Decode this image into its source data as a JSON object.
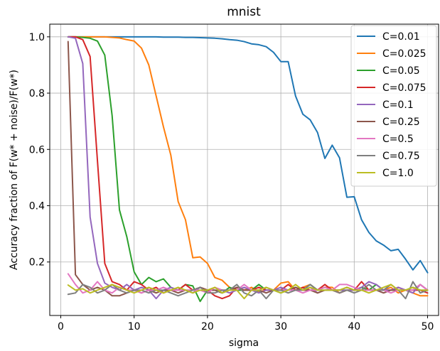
{
  "chart_data": {
    "type": "line",
    "title": "mnist",
    "xlabel": "sigma",
    "ylabel": "Accuracy fraction of F(w* + noise)/F(w*)",
    "xlim": [
      -1.5,
      51.5
    ],
    "ylim": [
      0.01,
      1.045
    ],
    "xticks": [
      0,
      10,
      20,
      30,
      40,
      50
    ],
    "yticks": [
      0.2,
      0.4,
      0.6,
      0.8,
      1.0
    ],
    "xtick_labels": [
      "0",
      "10",
      "20",
      "30",
      "40",
      "50"
    ],
    "ytick_labels": [
      "0.2",
      "0.4",
      "0.6",
      "0.8",
      "1.0"
    ],
    "grid": true,
    "legend_position": "top-right",
    "x": [
      1,
      2,
      3,
      4,
      5,
      6,
      7,
      8,
      9,
      10,
      11,
      12,
      13,
      14,
      15,
      16,
      17,
      18,
      19,
      20,
      21,
      22,
      23,
      24,
      25,
      26,
      27,
      28,
      29,
      30,
      31,
      32,
      33,
      34,
      35,
      36,
      37,
      38,
      39,
      40,
      41,
      42,
      43,
      44,
      45,
      46,
      47,
      48,
      49,
      50
    ],
    "series": [
      {
        "name": "C=0.01",
        "color": "#1f77b4",
        "values": [
          1.0,
          1.0,
          1.0,
          1.0,
          1.0,
          1.0,
          1.0,
          1.0,
          1.0,
          1.0,
          1.0,
          1.0,
          1.0,
          0.999,
          0.999,
          0.999,
          0.998,
          0.998,
          0.997,
          0.996,
          0.995,
          0.993,
          0.99,
          0.988,
          0.983,
          0.975,
          0.972,
          0.965,
          0.945,
          0.912,
          0.912,
          0.79,
          0.725,
          0.705,
          0.66,
          0.568,
          0.615,
          0.57,
          0.43,
          0.432,
          0.35,
          0.305,
          0.275,
          0.26,
          0.24,
          0.245,
          0.21,
          0.172,
          0.205,
          0.162
        ]
      },
      {
        "name": "C=0.025",
        "color": "#ff7f0e",
        "values": [
          1.0,
          1.0,
          1.0,
          1.0,
          1.0,
          1.0,
          0.998,
          0.996,
          0.99,
          0.985,
          0.96,
          0.9,
          0.79,
          0.68,
          0.58,
          0.415,
          0.35,
          0.215,
          0.218,
          0.195,
          0.145,
          0.135,
          0.11,
          0.1,
          0.1,
          0.11,
          0.095,
          0.1,
          0.1,
          0.125,
          0.13,
          0.1,
          0.11,
          0.12,
          0.1,
          0.11,
          0.11,
          0.09,
          0.1,
          0.1,
          0.11,
          0.1,
          0.1,
          0.1,
          0.11,
          0.09,
          0.1,
          0.09,
          0.08,
          0.08
        ]
      },
      {
        "name": "C=0.05",
        "color": "#2ca02c",
        "values": [
          1.0,
          1.0,
          0.998,
          0.995,
          0.985,
          0.935,
          0.72,
          0.385,
          0.29,
          0.165,
          0.12,
          0.145,
          0.13,
          0.14,
          0.11,
          0.1,
          0.12,
          0.115,
          0.06,
          0.1,
          0.1,
          0.09,
          0.11,
          0.1,
          0.1,
          0.1,
          0.12,
          0.1,
          0.1,
          0.09,
          0.1,
          0.11,
          0.1,
          0.12,
          0.1,
          0.11,
          0.1,
          0.1,
          0.1,
          0.1,
          0.11,
          0.1,
          0.12,
          0.1,
          0.1,
          0.1,
          0.1,
          0.11,
          0.1,
          0.1
        ]
      },
      {
        "name": "C=0.075",
        "color": "#d62728",
        "values": [
          1.0,
          1.0,
          0.99,
          0.93,
          0.56,
          0.195,
          0.13,
          0.12,
          0.1,
          0.13,
          0.12,
          0.1,
          0.11,
          0.09,
          0.1,
          0.1,
          0.12,
          0.1,
          0.11,
          0.1,
          0.08,
          0.07,
          0.08,
          0.11,
          0.1,
          0.1,
          0.11,
          0.1,
          0.1,
          0.1,
          0.12,
          0.1,
          0.11,
          0.1,
          0.1,
          0.12,
          0.1,
          0.09,
          0.1,
          0.1,
          0.13,
          0.1,
          0.1,
          0.1,
          0.1,
          0.11,
          0.1,
          0.1,
          0.1,
          0.09
        ]
      },
      {
        "name": "C=0.1",
        "color": "#9467bd",
        "values": [
          1.0,
          0.995,
          0.905,
          0.36,
          0.195,
          0.125,
          0.11,
          0.1,
          0.12,
          0.1,
          0.11,
          0.1,
          0.07,
          0.1,
          0.11,
          0.1,
          0.1,
          0.09,
          0.11,
          0.1,
          0.1,
          0.1,
          0.09,
          0.1,
          0.11,
          0.1,
          0.09,
          0.1,
          0.1,
          0.11,
          0.1,
          0.1,
          0.1,
          0.11,
          0.09,
          0.1,
          0.1,
          0.1,
          0.1,
          0.1,
          0.11,
          0.13,
          0.12,
          0.1,
          0.1,
          0.11,
          0.1,
          0.09,
          0.12,
          0.1
        ]
      },
      {
        "name": "C=0.25",
        "color": "#8c564b",
        "values": [
          0.983,
          0.155,
          0.12,
          0.1,
          0.11,
          0.1,
          0.08,
          0.08,
          0.09,
          0.1,
          0.09,
          0.1,
          0.09,
          0.1,
          0.1,
          0.09,
          0.1,
          0.1,
          0.11,
          0.1,
          0.1,
          0.09,
          0.1,
          0.11,
          0.1,
          0.1,
          0.1,
          0.09,
          0.1,
          0.1,
          0.1,
          0.11,
          0.1,
          0.1,
          0.09,
          0.1,
          0.1,
          0.1,
          0.11,
          0.1,
          0.1,
          0.1,
          0.1,
          0.09,
          0.1,
          0.1,
          0.1,
          0.1,
          0.12,
          0.1
        ]
      },
      {
        "name": "C=0.5",
        "color": "#e377c2",
        "values": [
          0.158,
          0.12,
          0.09,
          0.1,
          0.13,
          0.1,
          0.09,
          0.11,
          0.1,
          0.1,
          0.09,
          0.1,
          0.1,
          0.11,
          0.1,
          0.1,
          0.1,
          0.1,
          0.1,
          0.09,
          0.11,
          0.1,
          0.1,
          0.1,
          0.12,
          0.1,
          0.1,
          0.11,
          0.1,
          0.1,
          0.1,
          0.1,
          0.09,
          0.1,
          0.1,
          0.11,
          0.1,
          0.12,
          0.12,
          0.11,
          0.1,
          0.1,
          0.1,
          0.1,
          0.09,
          0.1,
          0.1,
          0.1,
          0.12,
          0.1
        ]
      },
      {
        "name": "C=0.75",
        "color": "#7f7f7f",
        "values": [
          0.085,
          0.09,
          0.12,
          0.11,
          0.09,
          0.1,
          0.12,
          0.1,
          0.09,
          0.1,
          0.1,
          0.09,
          0.1,
          0.1,
          0.09,
          0.08,
          0.09,
          0.1,
          0.11,
          0.09,
          0.09,
          0.1,
          0.1,
          0.12,
          0.09,
          0.08,
          0.1,
          0.07,
          0.1,
          0.1,
          0.09,
          0.1,
          0.1,
          0.12,
          0.1,
          0.1,
          0.1,
          0.09,
          0.1,
          0.09,
          0.1,
          0.12,
          0.1,
          0.1,
          0.12,
          0.1,
          0.07,
          0.13,
          0.09,
          0.1
        ]
      },
      {
        "name": "C=1.0",
        "color": "#bcbd22",
        "values": [
          0.118,
          0.1,
          0.105,
          0.09,
          0.1,
          0.11,
          0.12,
          0.11,
          0.1,
          0.09,
          0.1,
          0.11,
          0.1,
          0.09,
          0.1,
          0.11,
          0.1,
          0.09,
          0.1,
          0.1,
          0.11,
          0.09,
          0.1,
          0.1,
          0.07,
          0.1,
          0.1,
          0.11,
          0.1,
          0.09,
          0.1,
          0.12,
          0.1,
          0.11,
          0.1,
          0.1,
          0.1,
          0.1,
          0.11,
          0.1,
          0.1,
          0.09,
          0.1,
          0.11,
          0.12,
          0.1,
          0.1,
          0.11,
          0.1,
          0.1
        ]
      }
    ]
  }
}
